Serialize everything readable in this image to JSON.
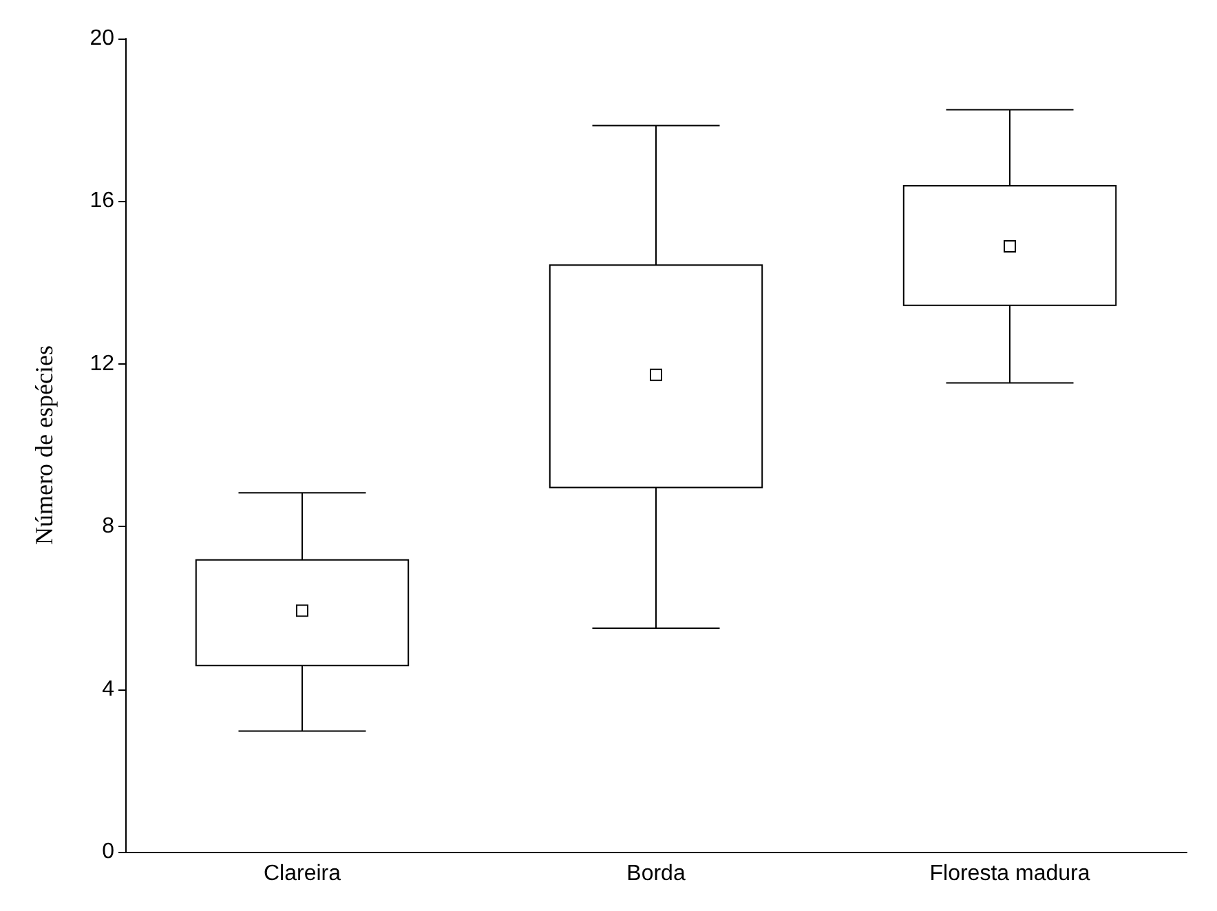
{
  "chart_data": {
    "type": "box",
    "ylabel": "Número de espécies",
    "categories": [
      "Clareira",
      "Borda",
      "Floresta madura"
    ],
    "boxes": [
      {
        "low": 2.97,
        "q1": 4.58,
        "median": 5.93,
        "q3": 7.18,
        "high": 8.83
      },
      {
        "low": 5.5,
        "q1": 8.96,
        "median": 11.73,
        "q3": 14.43,
        "high": 17.86
      },
      {
        "low": 11.53,
        "q1": 13.44,
        "median": 14.89,
        "q3": 16.38,
        "high": 18.25
      }
    ],
    "ylim": [
      0,
      20
    ],
    "yticks": [
      0,
      4,
      8,
      12,
      16,
      20
    ],
    "marker": "square"
  }
}
